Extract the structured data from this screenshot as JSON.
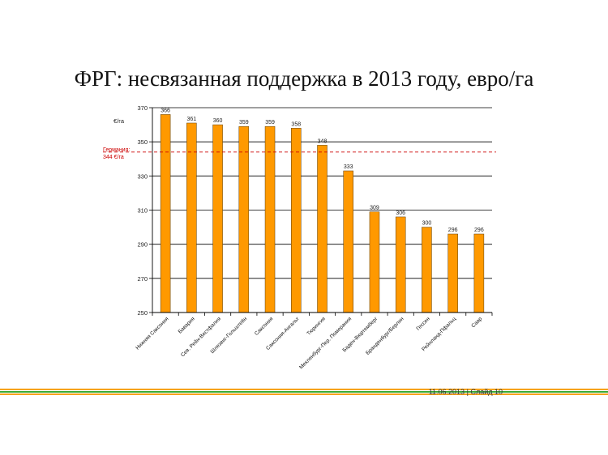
{
  "slide": {
    "title": "ФРГ: несвязанная поддержка в 2013 году, евро/га",
    "footer_date": "11.06.2013",
    "footer_separator": "|",
    "footer_slide": "Слайд 10"
  },
  "colors": {
    "bar": "#FF9900",
    "bar_stroke": "#5a3a00",
    "reference_line": "#cc0000",
    "stripe_orange": "#F7A21B",
    "stripe_green": "#3AAA35"
  },
  "chart_data": {
    "type": "bar",
    "ylabel": "€/га",
    "ylim": [
      250,
      370
    ],
    "yticks": [
      250,
      270,
      290,
      310,
      330,
      350,
      370
    ],
    "grid": true,
    "categories": [
      "Нижняя Саксония",
      "Бавария",
      "Сев. Рейн-Вестфалия",
      "Шлезвиг-Гольштейн",
      "Саксония",
      "Саксония-Ангальт",
      "Тюрингия",
      "Мекленбург-Пер. Померания",
      "Баден-Вюртемберг",
      "Бранденбург/Берлин",
      "Гессен",
      "Рейнланд-Пфальц",
      "Саар"
    ],
    "values": [
      366,
      361,
      360,
      359,
      359,
      358,
      348,
      333,
      309,
      306,
      300,
      296,
      296
    ],
    "reference": {
      "value": 344,
      "label_line1": "Германия:",
      "label_line2": "344 €/га"
    }
  }
}
